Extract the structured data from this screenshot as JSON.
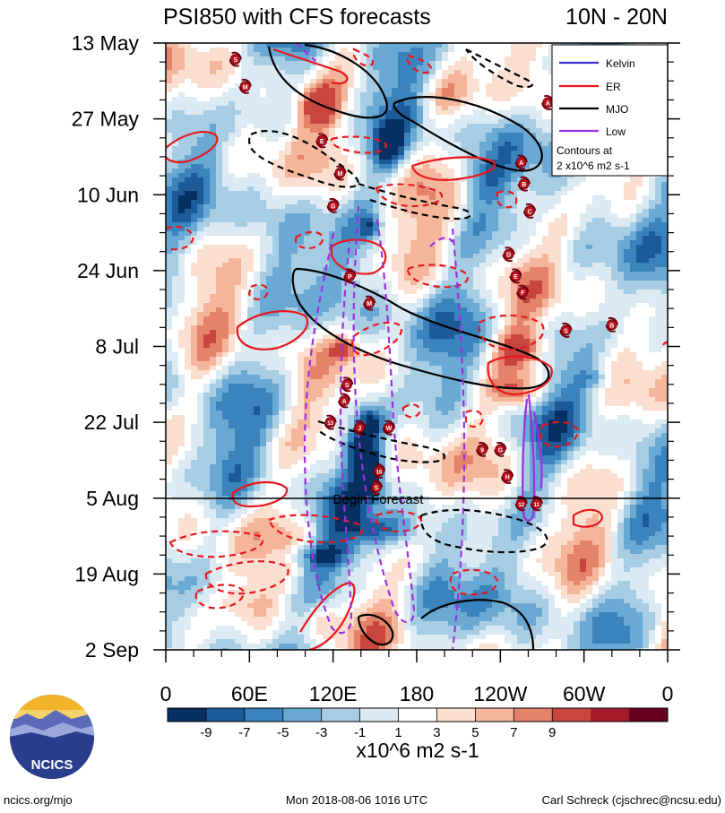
{
  "chart_data": {
    "type": "heatmap",
    "title": "PSI850 with CFS forecasts",
    "subtitle": "10N - 20N",
    "x_ticks": [
      "0",
      "60E",
      "120E",
      "180",
      "120W",
      "60W",
      "0"
    ],
    "y_ticks": [
      "13 May",
      "27 May",
      "10 Jun",
      "24 Jun",
      "8 Jul",
      "22 Jul",
      "5 Aug",
      "19 Aug",
      "2 Sep"
    ],
    "xlim": [
      0,
      360
    ],
    "forecast_label": "Begin Forecast",
    "colorbar": {
      "levels": [
        "-9",
        "-7",
        "-5",
        "-3",
        "-1",
        "1",
        "3",
        "5",
        "7",
        "9"
      ],
      "colors": [
        "#053061",
        "#1c5a98",
        "#3b83bd",
        "#6aa9d3",
        "#a6cde3",
        "#dbeaf3",
        "#ffffff",
        "#fbe0d2",
        "#f5b59a",
        "#e4826a",
        "#c8463f",
        "#a31a2a",
        "#67001f"
      ],
      "units": "x10^6 m2 s-1"
    },
    "legend": {
      "placement": "top-right",
      "entries": [
        {
          "name": "Kelvin",
          "color": "#3a2fd6"
        },
        {
          "name": "ER",
          "color": "#e8171c"
        },
        {
          "name": "MJO",
          "color": "#000000"
        },
        {
          "name": "Low",
          "color": "#9b30e0"
        }
      ],
      "note_line1": "Contours at",
      "note_line2": "2 x10^6 m2 s-1"
    },
    "storms": [
      {
        "label": "S",
        "lon": 50,
        "day": 3
      },
      {
        "label": "M",
        "lon": 57,
        "day": 8
      },
      {
        "label": "A",
        "lon": 274,
        "day": 11
      },
      {
        "label": "E",
        "lon": 112,
        "day": 18
      },
      {
        "label": "M",
        "lon": 125,
        "day": 24
      },
      {
        "label": "A",
        "lon": 255,
        "day": 22
      },
      {
        "label": "B",
        "lon": 257,
        "day": 26
      },
      {
        "label": "G",
        "lon": 120,
        "day": 30
      },
      {
        "label": "C",
        "lon": 261,
        "day": 31
      },
      {
        "label": "D",
        "lon": 246,
        "day": 39
      },
      {
        "label": "E",
        "lon": 251,
        "day": 43
      },
      {
        "label": "P",
        "lon": 132,
        "day": 43
      },
      {
        "label": "F",
        "lon": 256,
        "day": 46
      },
      {
        "label": "M",
        "lon": 146,
        "day": 48
      },
      {
        "label": "B",
        "lon": 320,
        "day": 52
      },
      {
        "label": "S",
        "lon": 287,
        "day": 53
      },
      {
        "label": "S",
        "lon": 130,
        "day": 63
      },
      {
        "label": "A",
        "lon": 128,
        "day": 66
      },
      {
        "label": "13",
        "lon": 118,
        "day": 70
      },
      {
        "label": "J",
        "lon": 139,
        "day": 71
      },
      {
        "label": "W",
        "lon": 160,
        "day": 71
      },
      {
        "label": "9",
        "lon": 227,
        "day": 75
      },
      {
        "label": "G",
        "lon": 240,
        "day": 75
      },
      {
        "label": "16",
        "lon": 153,
        "day": 79
      },
      {
        "label": "H",
        "lon": 245,
        "day": 80
      },
      {
        "label": "S",
        "lon": 151,
        "day": 82
      },
      {
        "label": "12",
        "lon": 255,
        "day": 85
      },
      {
        "label": "11",
        "lon": 266,
        "day": 85
      }
    ]
  },
  "footer": {
    "logo_text": "NCICS",
    "site": "ncics.org/mjo",
    "timestamp": "Mon 2018-08-06 1016 UTC",
    "author": "Carl Schreck (cjschrec@ncsu.edu)"
  },
  "colors": {
    "kelvin": "#3a2fd6",
    "er": "#e8171c",
    "mjo": "#000000",
    "low": "#9b30e0"
  }
}
